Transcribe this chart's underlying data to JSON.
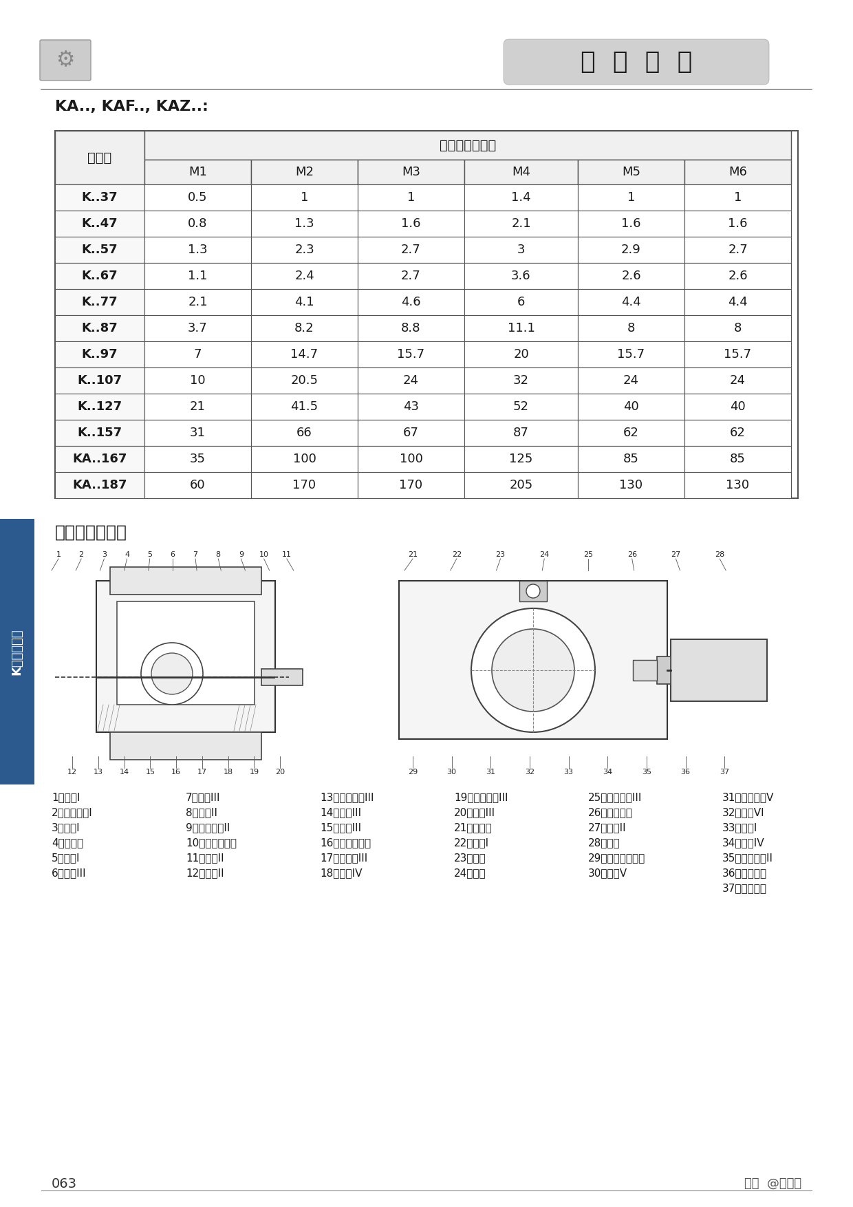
{
  "title_badge": "选  型  指  南",
  "section_label": "KA.., KAF.., KAZ..:",
  "table_header_row1": [
    "机型号",
    "润滑油量（升）"
  ],
  "table_header_row2": [
    "",
    "M1",
    "M2",
    "M3",
    "M4",
    "M5",
    "M6"
  ],
  "table_data": [
    [
      "K..37",
      "0.5",
      "1",
      "1",
      "1.4",
      "1",
      "1"
    ],
    [
      "K..47",
      "0.8",
      "1.3",
      "1.6",
      "2.1",
      "1.6",
      "1.6"
    ],
    [
      "K..57",
      "1.3",
      "2.3",
      "2.7",
      "3",
      "2.9",
      "2.7"
    ],
    [
      "K..67",
      "1.1",
      "2.4",
      "2.7",
      "3.6",
      "2.6",
      "2.6"
    ],
    [
      "K..77",
      "2.1",
      "4.1",
      "4.6",
      "6",
      "4.4",
      "4.4"
    ],
    [
      "K..87",
      "3.7",
      "8.2",
      "8.8",
      "11.1",
      "8",
      "8"
    ],
    [
      "K..97",
      "7",
      "14.7",
      "15.7",
      "20",
      "15.7",
      "15.7"
    ],
    [
      "K..107",
      "10",
      "20.5",
      "24",
      "32",
      "24",
      "24"
    ],
    [
      "K..127",
      "21",
      "41.5",
      "43",
      "52",
      "40",
      "40"
    ],
    [
      "K..157",
      "31",
      "66",
      "67",
      "87",
      "62",
      "62"
    ],
    [
      "KA..167",
      "35",
      "100",
      "100",
      "125",
      "85",
      "85"
    ],
    [
      "KA..187",
      "60",
      "170",
      "170",
      "205",
      "130",
      "130"
    ]
  ],
  "diagram_title": "产品结构示意图",
  "left_labels": [
    "1",
    "2",
    "3",
    "4",
    "5",
    "6",
    "7",
    "8",
    "9",
    "10",
    "11",
    "12",
    "13",
    "14",
    "15",
    "16",
    "17",
    "18",
    "19",
    "20"
  ],
  "right_labels": [
    "21",
    "22",
    "23",
    "24",
    "25",
    "26",
    "27",
    "28",
    "29",
    "30",
    "31",
    "32",
    "33",
    "34",
    "35",
    "36",
    "37"
  ],
  "parts_list": [
    [
      "1、封盖I",
      "7、轴套III",
      "13、孔用挡圈III",
      "19、孔用挡圈III",
      "25、轴用挡圈III",
      "31、孔用挡圈V"
    ],
    [
      "2、孔用挡圈I",
      "8、轴承II",
      "14、轴承III",
      "20、封盖III",
      "26、输入齿轮",
      "32、轴承VI"
    ],
    [
      "3、轴承I",
      "9、孔用挡圈II",
      "15、平键III",
      "21、通气帽",
      "27、螺栓II",
      "33、齿轮I"
    ],
    [
      "4、输出轴",
      "10、输出轴油封",
      "16、弧齿锥齿轮",
      "22、螺栓I",
      "28、电机",
      "34、平键IV"
    ],
    [
      "5、平键I",
      "11、平键II",
      "17、齿轮轴III",
      "23、端盖",
      "29、弧齿锥齿轮轴",
      "35、轴用挡圈II"
    ],
    [
      "6、齿轮III",
      "12、封盖II",
      "18、轴承IV",
      "24、箱体",
      "30、轴承V",
      "36、电机油封"
    ],
    [
      "",
      "",
      "",
      "",
      "",
      "37、电机轴承"
    ]
  ],
  "page_number": "063",
  "watermark": "头条  @减速器",
  "side_label": "K系列减速器",
  "bg_color": "#FFFFFF",
  "text_color": "#1a1a1a",
  "table_border_color": "#555555",
  "header_bg": "#e8e8e8"
}
